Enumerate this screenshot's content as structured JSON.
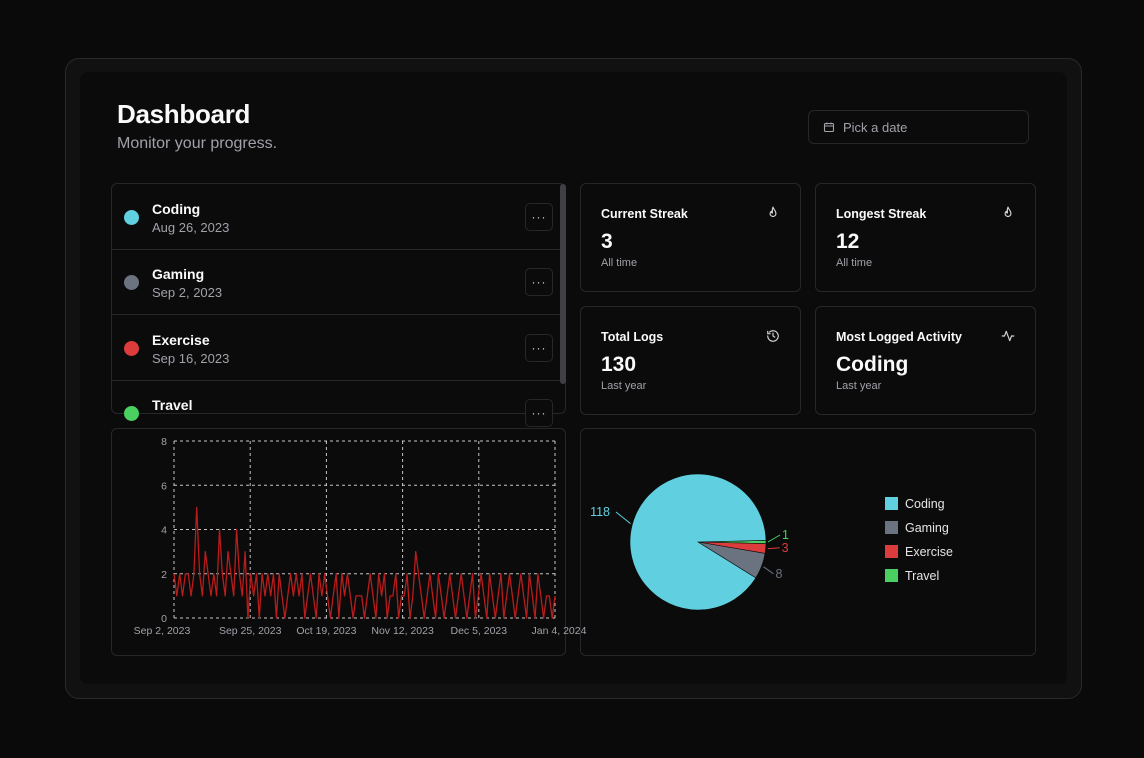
{
  "header": {
    "title": "Dashboard",
    "subtitle": "Monitor your progress.",
    "date_picker_placeholder": "Pick a date"
  },
  "activities": [
    {
      "name": "Coding",
      "date": "Aug 26, 2023",
      "color": "#60d0e0",
      "more_label": "···"
    },
    {
      "name": "Gaming",
      "date": "Sep 2, 2023",
      "color": "#6b7280",
      "more_label": "···"
    },
    {
      "name": "Exercise",
      "date": "Sep 16, 2023",
      "color": "#dc3c3c",
      "more_label": "···"
    },
    {
      "name": "Travel",
      "date": "",
      "color": "#4ad060",
      "more_label": "···"
    }
  ],
  "stats": {
    "current_streak": {
      "title": "Current Streak",
      "value": "3",
      "caption": "All time",
      "icon": "flame-icon"
    },
    "longest_streak": {
      "title": "Longest Streak",
      "value": "12",
      "caption": "All time",
      "icon": "flame-icon"
    },
    "total_logs": {
      "title": "Total Logs",
      "value": "130",
      "caption": "Last year",
      "icon": "history-icon"
    },
    "most_logged": {
      "title": "Most Logged Activity",
      "value": "Coding",
      "caption": "Last year",
      "icon": "activity-icon"
    }
  },
  "colors": {
    "line": "#b91c1c",
    "coding": "#60d0e0",
    "gaming": "#6b7280",
    "exercise": "#dc3c3c",
    "travel": "#4ad060"
  },
  "chart_data": [
    {
      "type": "line",
      "ylim": [
        0,
        8
      ],
      "yticks": [
        "0",
        "2",
        "4",
        "6",
        "8"
      ],
      "xticks": [
        "Sep 2, 2023",
        "Sep 25, 2023",
        "Oct 19, 2023",
        "Nov 12, 2023",
        "Dec 5, 2023",
        "Jan 4, 2024"
      ],
      "grid": true,
      "series": [
        {
          "values": [
            2,
            1,
            2,
            1,
            2,
            2,
            1,
            2,
            5,
            2,
            1,
            3,
            2,
            1,
            2,
            1,
            4,
            2,
            1,
            3,
            2,
            1,
            4,
            2,
            1,
            3,
            0,
            2,
            1,
            2,
            0,
            2,
            1,
            2,
            1,
            2,
            0,
            2,
            1,
            0,
            1,
            2,
            1,
            2,
            1,
            2,
            0,
            1,
            2,
            1,
            0,
            2,
            1,
            2,
            1,
            0,
            1,
            2,
            0,
            2,
            1,
            2,
            1,
            0,
            1,
            1,
            1,
            0,
            1,
            2,
            1,
            0,
            2,
            1,
            2,
            0,
            1,
            1,
            2,
            0,
            1,
            1,
            2,
            0,
            1,
            3,
            2,
            1,
            0,
            1,
            2,
            1,
            0,
            2,
            1,
            0,
            1,
            2,
            1,
            0,
            1,
            2,
            1,
            0,
            1,
            2,
            0,
            1,
            2,
            1,
            0,
            2,
            1,
            0,
            1,
            2,
            0,
            1,
            2,
            1,
            0,
            1,
            2,
            1,
            0,
            2,
            1,
            0,
            2,
            1,
            0,
            1,
            1,
            0,
            1
          ]
        }
      ]
    },
    {
      "type": "pie",
      "legend_position": "right",
      "slices": [
        {
          "label": "Coding",
          "value": 118
        },
        {
          "label": "Gaming",
          "value": 8
        },
        {
          "label": "Exercise",
          "value": 3
        },
        {
          "label": "Travel",
          "value": 1
        }
      ]
    }
  ]
}
